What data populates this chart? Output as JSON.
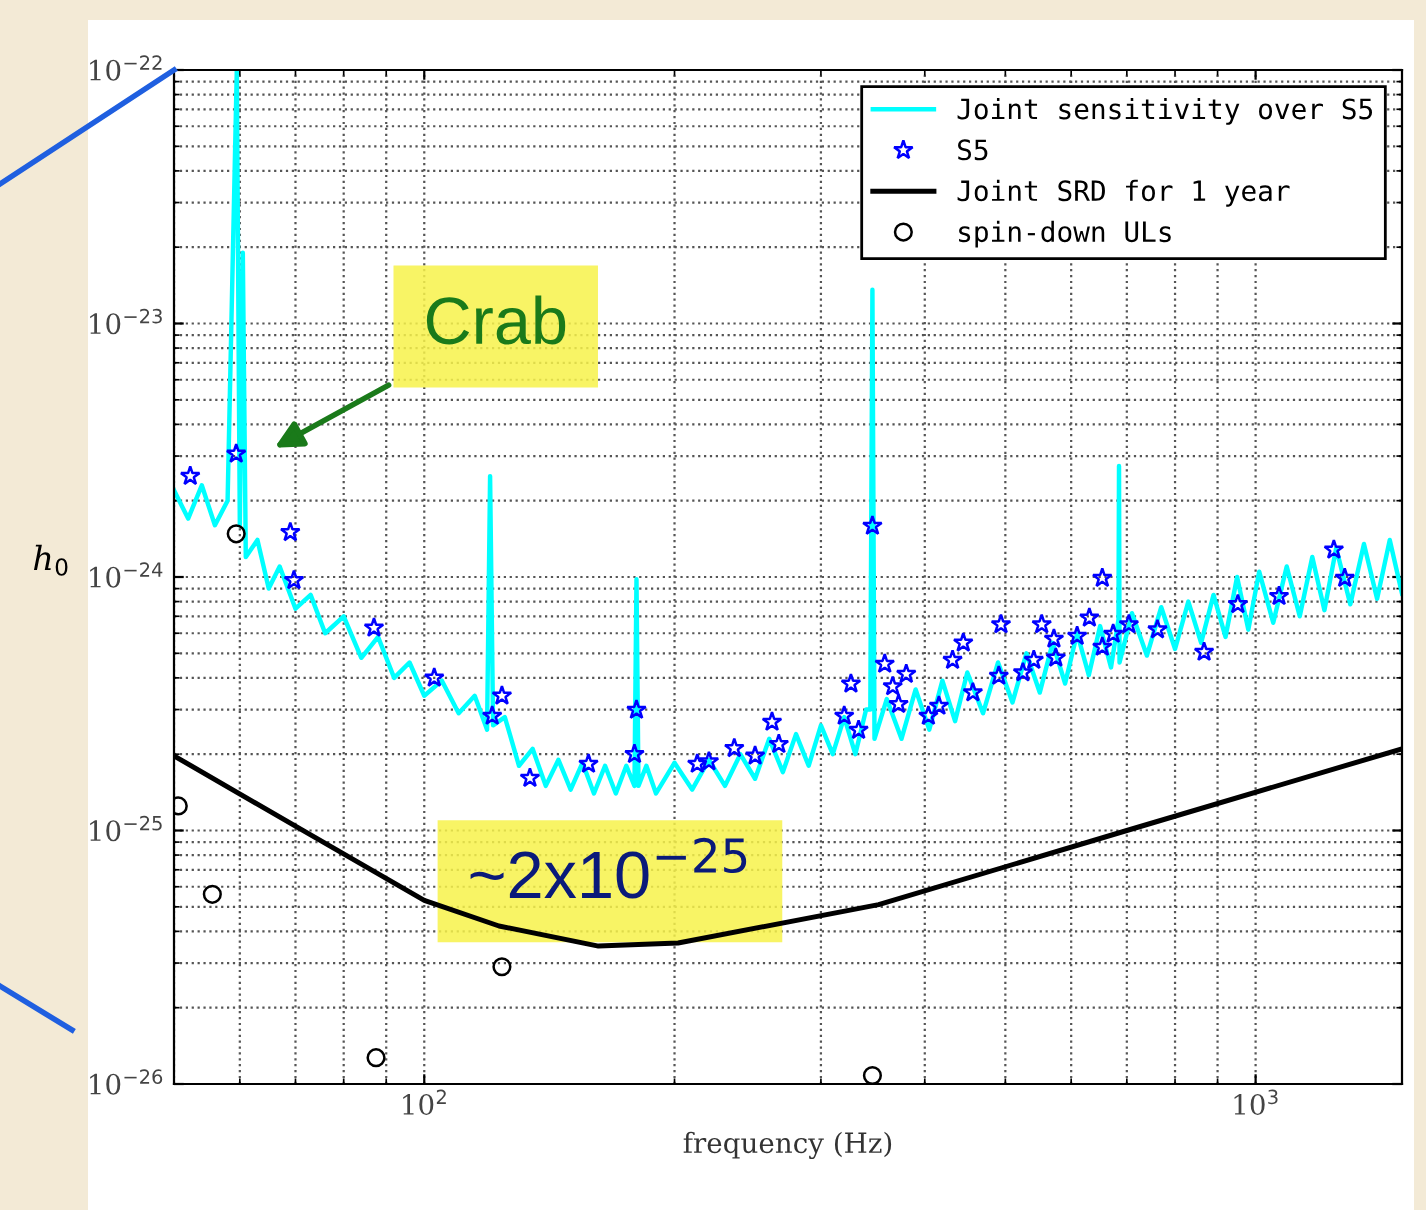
{
  "chart_data": {
    "type": "line",
    "xlabel": "frequency (Hz)",
    "ylabel": "h$_{0}$",
    "log": "xy",
    "grid": true,
    "legend": "top right",
    "xlim": [
      50,
      1500
    ],
    "ylim": [
      1e-26,
      1e-22
    ],
    "xticks": [
      {
        "value": 100,
        "label": "10$^{2}$"
      },
      {
        "value": 1000,
        "label": "10$^{3}$"
      }
    ],
    "yticks": [
      {
        "value": 1e-26,
        "label": "10$^{−26}$"
      },
      {
        "value": 1e-25,
        "label": "10$^{−25}$"
      },
      {
        "value": 1e-24,
        "label": "10$^{−24}$"
      },
      {
        "value": 1e-23,
        "label": "10$^{−23}$"
      },
      {
        "value": 1e-22,
        "label": "10$^{−22}$"
      }
    ],
    "annotations": [
      "Crab",
      "~2x10$^{−25}$"
    ],
    "series": [
      {
        "name": "Joint sensitivity over S5",
        "color": "#00ffff",
        "marker": "none",
        "line_style": "solid",
        "x": [
          50,
          52,
          54,
          56,
          58,
          59.5,
          60,
          60.5,
          61,
          63,
          65,
          67,
          70,
          73,
          76,
          80,
          84,
          88,
          92,
          96,
          100,
          105,
          110,
          115,
          119,
          120,
          121,
          125,
          130,
          135,
          140,
          145,
          150,
          155,
          160,
          165,
          170,
          175,
          179,
          180,
          181,
          185,
          190,
          200,
          210,
          220,
          230,
          240,
          250,
          260,
          270,
          280,
          290,
          300,
          310,
          320,
          330,
          340,
          344,
          346,
          348,
          360,
          375,
          390,
          405,
          420,
          435,
          450,
          470,
          490,
          510,
          530,
          550,
          570,
          590,
          610,
          630,
          650,
          670,
          684,
          685,
          686,
          710,
          740,
          770,
          800,
          830,
          860,
          890,
          920,
          950,
          980,
          1010,
          1050,
          1090,
          1130,
          1170,
          1210,
          1250,
          1300,
          1350,
          1400,
          1450,
          1500
        ],
        "values": [
          2.2e-24,
          1.7e-24,
          2.3e-24,
          1.6e-24,
          2e-24,
          1e-22,
          1.6e-24,
          1.9e-23,
          1.2e-24,
          1.4e-24,
          9e-25,
          1.1e-24,
          7.5e-25,
          8.5e-25,
          6e-25,
          7e-25,
          4.8e-25,
          5.8e-25,
          4e-25,
          4.6e-25,
          3.4e-25,
          3.9e-25,
          2.9e-25,
          3.4e-25,
          2.5e-25,
          2.5e-24,
          2.6e-25,
          2.8e-25,
          1.8e-25,
          2.1e-25,
          1.5e-25,
          1.9e-25,
          1.45e-25,
          1.85e-25,
          1.4e-25,
          1.8e-25,
          1.4e-25,
          1.8e-25,
          1.5e-25,
          9.8e-25,
          1.5e-25,
          1.8e-25,
          1.4e-25,
          1.85e-25,
          1.45e-25,
          1.9e-25,
          1.5e-25,
          2e-25,
          1.6e-25,
          2.3e-25,
          1.7e-25,
          2.4e-25,
          1.8e-25,
          2.6e-25,
          2e-25,
          2.8e-25,
          2e-25,
          3e-25,
          3e-25,
          1.36e-23,
          2.3e-25,
          3.3e-25,
          2.3e-25,
          3.6e-25,
          2.5e-25,
          3.9e-25,
          2.7e-25,
          4.2e-25,
          2.9e-25,
          4.6e-25,
          3.2e-25,
          5e-25,
          3.5e-25,
          5.5e-25,
          3.8e-25,
          6e-25,
          4.1e-25,
          6.4e-25,
          4.4e-25,
          6.8e-25,
          2.74e-24,
          4.6e-25,
          7.2e-25,
          4.9e-25,
          7.6e-25,
          5.2e-25,
          8e-25,
          5.5e-25,
          8.5e-25,
          5.8e-25,
          1e-24,
          6.2e-25,
          1.05e-24,
          6.6e-25,
          1.1e-24,
          7e-25,
          1.2e-24,
          7.4e-25,
          1.3e-24,
          7.8e-25,
          1.35e-24,
          8.2e-25,
          1.4e-24,
          8.6e-25
        ]
      },
      {
        "name": "S5",
        "type": "scatter",
        "color": "#0000ff",
        "marker": "star",
        "x": [
          52.3,
          59.4,
          69,
          69.7,
          87,
          102.8,
          120.7,
          124,
          134,
          157.6,
          180,
          179,
          213,
          220,
          236,
          250,
          262,
          267,
          320,
          326,
          333,
          346,
          358,
          366,
          372,
          380,
          404,
          416,
          432,
          445,
          457,
          491,
          494,
          525,
          541,
          553,
          572,
          575,
          610,
          631,
          654,
          674,
          654,
          704,
          762,
          867,
          952,
          1067,
          1280,
          1242
        ],
        "values": [
          2.5e-24,
          3.06e-24,
          1.5e-24,
          9.7e-25,
          6.3e-25,
          4e-25,
          2.83e-25,
          3.4e-25,
          1.61e-25,
          1.83e-25,
          2.99e-25,
          2e-25,
          1.83e-25,
          1.87e-25,
          2.11e-25,
          1.97e-25,
          2.68e-25,
          2.19e-25,
          2.83e-25,
          3.79e-25,
          2.49e-25,
          1.59e-24,
          4.54e-25,
          3.7e-25,
          3.15e-25,
          4.14e-25,
          2.83e-25,
          3.1e-25,
          4.7e-25,
          5.5e-25,
          3.5e-25,
          4.07e-25,
          6.5e-25,
          4.2e-25,
          4.7e-25,
          6.5e-25,
          5.7e-25,
          4.8e-25,
          5.85e-25,
          6.9e-25,
          5.3e-25,
          5.96e-25,
          9.9e-25,
          6.5e-25,
          6.2e-25,
          5.06e-25,
          7.8e-25,
          8.4e-25,
          9.9e-25,
          1.28e-24
        ]
      },
      {
        "name": "Joint SRD for 1 year",
        "color": "#000000",
        "marker": "none",
        "line_style": "solid",
        "x": [
          50,
          70,
          100,
          123,
          162,
          202,
          352,
          700,
          1500
        ],
        "values": [
          1.97e-25,
          1.04e-25,
          5.3e-26,
          4.2e-26,
          3.5e-26,
          3.6e-26,
          5.1e-26,
          1e-25,
          2.1e-25
        ]
      },
      {
        "name": "spin-down ULs",
        "type": "scatter",
        "color": "#000000",
        "marker": "circle",
        "x": [
          50.6,
          55.6,
          59.4,
          87.5,
          124,
          346
        ],
        "values": [
          1.25e-25,
          5.6e-26,
          1.48e-24,
          1.27e-26,
          2.9e-26,
          1.08e-26
        ]
      }
    ]
  }
}
